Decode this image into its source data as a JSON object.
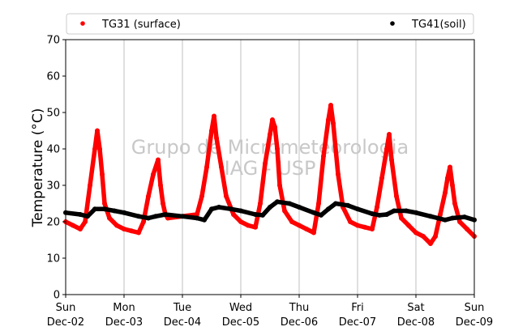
{
  "chart_data": {
    "type": "scatter",
    "ylabel": "Temperature (°C)",
    "ylim": [
      0,
      70
    ],
    "yticks": [
      0,
      10,
      20,
      30,
      40,
      50,
      60,
      70
    ],
    "xlim": [
      "2018-12-02 00:00",
      "2018-12-09 00:00"
    ],
    "xticks": [
      {
        "day": "Sun",
        "date": "Dec-02"
      },
      {
        "day": "Mon",
        "date": "Dec-03"
      },
      {
        "day": "Tue",
        "date": "Dec-04"
      },
      {
        "day": "Wed",
        "date": "Dec-05"
      },
      {
        "day": "Thu",
        "date": "Dec-06"
      },
      {
        "day": "Fri",
        "date": "Dec-07"
      },
      {
        "day": "Sat",
        "date": "Dec-08"
      },
      {
        "day": "Sun",
        "date": "Dec-09"
      }
    ],
    "grid": "vertical",
    "legend_position": "top",
    "watermark": [
      "Grupo de Micrometeorologia",
      "IAG - USP"
    ],
    "series": [
      {
        "name": "TG31 (surface)",
        "color": "#ff0000",
        "x": [
          "2018-12-02 00:00",
          "2018-12-02 03:00",
          "2018-12-02 06:00",
          "2018-12-02 08:00",
          "2018-12-02 10:00",
          "2018-12-02 12:00",
          "2018-12-02 13:00",
          "2018-12-02 14:00",
          "2018-12-02 15:00",
          "2018-12-02 16:00",
          "2018-12-02 18:00",
          "2018-12-02 21:00",
          "2018-12-03 00:00",
          "2018-12-03 03:00",
          "2018-12-03 06:00",
          "2018-12-03 08:00",
          "2018-12-03 10:00",
          "2018-12-03 12:00",
          "2018-12-03 14:00",
          "2018-12-03 15:00",
          "2018-12-03 16:00",
          "2018-12-03 17:00",
          "2018-12-03 18:00",
          "2018-12-04 06:00",
          "2018-12-04 08:00",
          "2018-12-04 10:00",
          "2018-12-04 12:00",
          "2018-12-04 13:00",
          "2018-12-04 14:00",
          "2018-12-04 16:00",
          "2018-12-04 18:00",
          "2018-12-04 21:00",
          "2018-12-05 00:00",
          "2018-12-05 03:00",
          "2018-12-05 06:00",
          "2018-12-05 08:00",
          "2018-12-05 10:00",
          "2018-12-05 12:00",
          "2018-12-05 13:00",
          "2018-12-05 14:00",
          "2018-12-05 15:00",
          "2018-12-05 16:00",
          "2018-12-05 18:00",
          "2018-12-05 21:00",
          "2018-12-06 00:00",
          "2018-12-06 03:00",
          "2018-12-06 06:00",
          "2018-12-06 08:00",
          "2018-12-06 10:00",
          "2018-12-06 12:00",
          "2018-12-06 13:00",
          "2018-12-06 14:00",
          "2018-12-06 16:00",
          "2018-12-06 18:00",
          "2018-12-06 21:00",
          "2018-12-07 00:00",
          "2018-12-07 03:00",
          "2018-12-07 06:00",
          "2018-12-07 08:00",
          "2018-12-07 10:00",
          "2018-12-07 12:00",
          "2018-12-07 13:00",
          "2018-12-07 14:00",
          "2018-12-07 16:00",
          "2018-12-07 18:00",
          "2018-12-07 21:00",
          "2018-12-08 00:00",
          "2018-12-08 03:00",
          "2018-12-08 06:00",
          "2018-12-08 08:00",
          "2018-12-08 10:00",
          "2018-12-08 12:00",
          "2018-12-08 13:00",
          "2018-12-08 14:00",
          "2018-12-08 15:00",
          "2018-12-08 16:00",
          "2018-12-08 18:00",
          "2018-12-08 21:00",
          "2018-12-09 00:00"
        ],
        "y": [
          20,
          19,
          18,
          20,
          30,
          40,
          45,
          40,
          33,
          25,
          21,
          19,
          18,
          17.5,
          17,
          20,
          27,
          33,
          37,
          30,
          25,
          22,
          21,
          22,
          27,
          35,
          45,
          49,
          43,
          35,
          27,
          22,
          20,
          19,
          18.5,
          25,
          36,
          44,
          48,
          46,
          40,
          30,
          23,
          20,
          19,
          18,
          17,
          25,
          38,
          48,
          52,
          47,
          33,
          24,
          20,
          19,
          18.5,
          18,
          24,
          32,
          40,
          44,
          37,
          27,
          21,
          19,
          17,
          16,
          14,
          16,
          22,
          28,
          32,
          35,
          30,
          25,
          20,
          18,
          16
        ]
      },
      {
        "name": "TG41(soil)",
        "color": "#000000",
        "x": [
          "2018-12-02 00:00",
          "2018-12-02 06:00",
          "2018-12-02 09:00",
          "2018-12-02 12:00",
          "2018-12-02 16:00",
          "2018-12-02 20:00",
          "2018-12-03 00:00",
          "2018-12-03 06:00",
          "2018-12-03 10:00",
          "2018-12-03 13:00",
          "2018-12-03 17:00",
          "2018-12-04 00:00",
          "2018-12-04 06:00",
          "2018-12-04 09:00",
          "2018-12-04 12:00",
          "2018-12-04 15:00",
          "2018-12-04 20:00",
          "2018-12-05 00:00",
          "2018-12-05 06:00",
          "2018-12-05 09:00",
          "2018-12-05 12:00",
          "2018-12-05 15:00",
          "2018-12-05 20:00",
          "2018-12-06 00:00",
          "2018-12-06 06:00",
          "2018-12-06 09:00",
          "2018-12-06 12:00",
          "2018-12-06 15:00",
          "2018-12-06 20:00",
          "2018-12-07 00:00",
          "2018-12-07 06:00",
          "2018-12-07 09:00",
          "2018-12-07 12:00",
          "2018-12-07 15:00",
          "2018-12-07 20:00",
          "2018-12-08 00:00",
          "2018-12-08 06:00",
          "2018-12-08 09:00",
          "2018-12-08 12:00",
          "2018-12-08 15:00",
          "2018-12-08 20:00",
          "2018-12-09 00:00"
        ],
        "y": [
          22.5,
          22,
          21.5,
          23.5,
          23.5,
          23,
          22.5,
          21.5,
          21,
          21.5,
          22,
          21.5,
          21,
          20.5,
          23.5,
          24,
          23.5,
          23,
          22,
          21.8,
          24,
          25.5,
          25,
          24,
          22.5,
          21.8,
          23.5,
          25,
          24.5,
          23.5,
          22.2,
          21.8,
          22,
          23,
          23,
          22.5,
          21.5,
          21,
          20.5,
          21,
          21.3,
          20.5
        ]
      }
    ]
  }
}
